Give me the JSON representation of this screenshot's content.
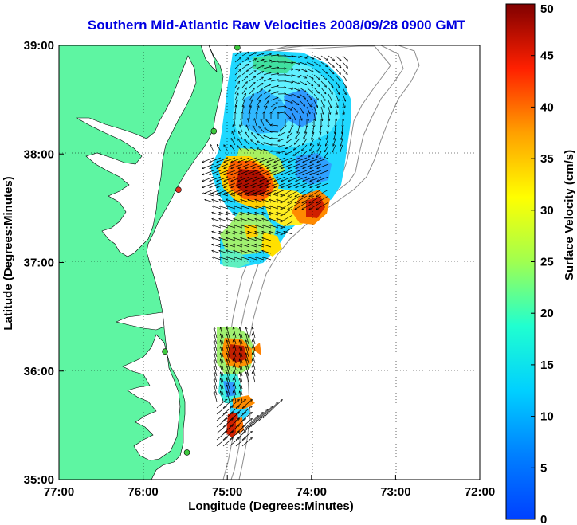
{
  "title": "Southern Mid-Atlantic Raw Velocities 2008/09/28 0900 GMT",
  "x_axis": {
    "label": "Longitude (Degrees:Minutes)",
    "ticks": [
      "77:00",
      "76:00",
      "75:00",
      "74:00",
      "73:00",
      "72:00"
    ]
  },
  "y_axis": {
    "label": "Latitude (Degrees:Minutes)",
    "ticks": [
      "39:00",
      "38:00",
      "37:00",
      "36:00",
      "35:00"
    ]
  },
  "colorbar": {
    "label": "Surface Velocity (cm/s)",
    "ticks": [
      "50",
      "45",
      "40",
      "35",
      "30",
      "25",
      "20",
      "15",
      "10",
      "5",
      "0"
    ],
    "colormap": "jet",
    "range": [
      0,
      50
    ]
  },
  "colors": {
    "land": "#5ef5a2",
    "water": "#ffffff",
    "bathymetry": "#8c8c8c",
    "title": "#0000e0",
    "station_active": "#3ec83e",
    "station_alert": "#e03020"
  },
  "map_extent": {
    "lon": [
      -77,
      -72
    ],
    "lat": [
      35,
      39
    ]
  },
  "grid": "dotted",
  "stations": [
    {
      "lon": -74.88,
      "lat": 38.98,
      "status": "active"
    },
    {
      "lon": -75.16,
      "lat": 38.21,
      "status": "active"
    },
    {
      "lon": -75.58,
      "lat": 37.67,
      "status": "alert"
    },
    {
      "lon": -75.74,
      "lat": 36.18,
      "status": "active"
    },
    {
      "lon": -75.48,
      "lat": 35.25,
      "status": "active"
    }
  ]
}
